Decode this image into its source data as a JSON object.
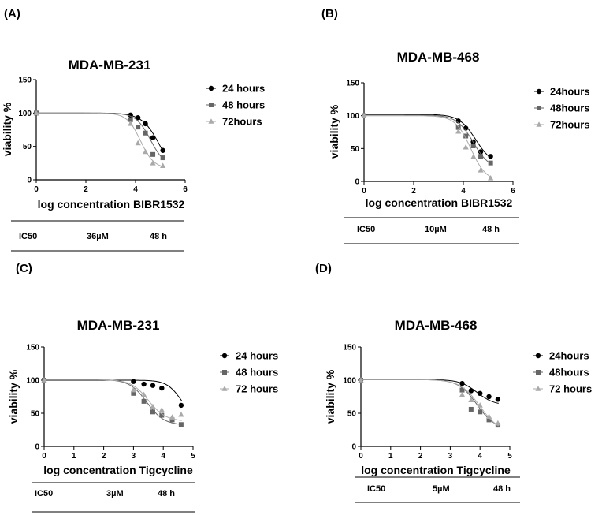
{
  "figure": {
    "panels": [
      {
        "letter": "(A)",
        "ic50_label": "IC50",
        "ic50_value": "36µM",
        "ic50_time": "48 h"
      },
      {
        "letter": "(B)",
        "ic50_label": "IC50",
        "ic50_value": "10µM",
        "ic50_time": "48 h"
      },
      {
        "letter": "(C)",
        "ic50_label": "IC50",
        "ic50_value": "3µM",
        "ic50_time": "48 h"
      },
      {
        "letter": "(D)",
        "ic50_label": "IC50",
        "ic50_value": "5µM",
        "ic50_time": "48 h"
      }
    ]
  },
  "chart_data": [
    {
      "type": "scatter",
      "title": "MDA-MB-231",
      "xlabel": "log concentration BIBR1532",
      "ylabel": "viability %",
      "xlim": [
        0,
        6
      ],
      "ylim": [
        0,
        150
      ],
      "xticks": [
        0,
        2,
        4,
        6
      ],
      "yticks": [
        0,
        50,
        100,
        150
      ],
      "legend_position": "right",
      "series": [
        {
          "name": "24 hours",
          "marker": "circle",
          "color": "#000000",
          "x": [
            0,
            3.8,
            4.1,
            4.4,
            4.7,
            5.1
          ],
          "y": [
            100,
            97,
            93,
            84,
            63,
            44
          ],
          "fit": {
            "top": 100,
            "bottom": 0,
            "logic50": 5.0,
            "hill": 1.2
          }
        },
        {
          "name": "48 hours",
          "marker": "square",
          "color": "#666666",
          "x": [
            0,
            3.8,
            4.1,
            4.4,
            4.7,
            5.1
          ],
          "y": [
            100,
            90,
            79,
            70,
            38,
            33
          ],
          "fit": {
            "top": 100,
            "bottom": 20,
            "logic50": 4.6,
            "hill": 1.5
          }
        },
        {
          "name": "72hours",
          "marker": "triangle",
          "color": "#aaaaaa",
          "x": [
            0,
            3.8,
            4.1,
            4.4,
            4.7,
            5.1
          ],
          "y": [
            100,
            84,
            55,
            42,
            25,
            21
          ],
          "fit": {
            "top": 100,
            "bottom": 17,
            "logic50": 4.2,
            "hill": 1.6
          }
        }
      ]
    },
    {
      "type": "scatter",
      "title": "MDA-MB-468",
      "xlabel": "log concentration BIBR1532",
      "ylabel": "viability %",
      "xlim": [
        0,
        6
      ],
      "ylim": [
        0,
        150
      ],
      "xticks": [
        0,
        2,
        4,
        6
      ],
      "yticks": [
        0,
        50,
        100,
        150
      ],
      "legend_position": "right",
      "series": [
        {
          "name": "24hours",
          "marker": "circle",
          "color": "#000000",
          "x": [
            0,
            3.8,
            4.1,
            4.4,
            4.7,
            5.1
          ],
          "y": [
            100,
            92,
            81,
            60,
            45,
            38
          ],
          "fit": {
            "top": 102,
            "bottom": 25,
            "logic50": 4.5,
            "hill": 1.3
          }
        },
        {
          "name": "48hours",
          "marker": "square",
          "color": "#666666",
          "x": [
            0,
            3.8,
            4.1,
            4.4,
            4.7,
            5.1
          ],
          "y": [
            100,
            82,
            69,
            54,
            38,
            28
          ],
          "fit": {
            "top": 101,
            "bottom": 18,
            "logic50": 4.4,
            "hill": 1.3
          }
        },
        {
          "name": "72hours",
          "marker": "triangle",
          "color": "#aaaaaa",
          "x": [
            0,
            3.8,
            4.1,
            4.4,
            4.7,
            5.1
          ],
          "y": [
            100,
            76,
            52,
            37,
            17,
            5
          ],
          "fit": {
            "top": 100,
            "bottom": 0,
            "logic50": 4.3,
            "hill": 1.4
          }
        }
      ]
    },
    {
      "type": "scatter",
      "title": "MDA-MB-231",
      "xlabel": "log concentration Tigcycline",
      "ylabel": "viability %",
      "xlim": [
        0,
        5
      ],
      "ylim": [
        0,
        150
      ],
      "xticks": [
        0,
        1,
        2,
        3,
        4,
        5
      ],
      "yticks": [
        0,
        50,
        100,
        150
      ],
      "legend_position": "right",
      "series": [
        {
          "name": "24 hours",
          "marker": "circle",
          "color": "#000000",
          "x": [
            0,
            3.0,
            3.35,
            3.65,
            3.95,
            4.6
          ],
          "y": [
            100,
            98,
            94,
            92,
            88,
            62
          ],
          "fit": {
            "top": 100,
            "bottom": 40,
            "logic50": 4.6,
            "hill": 1.8
          }
        },
        {
          "name": "48 hours",
          "marker": "square",
          "color": "#666666",
          "x": [
            0,
            3.0,
            3.35,
            3.65,
            3.95,
            4.3,
            4.6
          ],
          "y": [
            100,
            80,
            68,
            52,
            47,
            40,
            33
          ],
          "fit": {
            "top": 101,
            "bottom": 32,
            "logic50": 3.45,
            "hill": 1.5
          }
        },
        {
          "name": "72 hours",
          "marker": "triangle",
          "color": "#aaaaaa",
          "x": [
            0,
            3.0,
            3.35,
            3.65,
            3.95,
            4.3,
            4.6
          ],
          "y": [
            100,
            85,
            78,
            60,
            55,
            44,
            48
          ],
          "fit": {
            "top": 101,
            "bottom": 38,
            "logic50": 3.5,
            "hill": 1.5
          }
        }
      ]
    },
    {
      "type": "scatter",
      "title": "MDA-MB-468",
      "xlabel": "log concentration Tigcycline",
      "ylabel": "viability %",
      "xlim": [
        0,
        5
      ],
      "ylim": [
        0,
        150
      ],
      "xticks": [
        0,
        1,
        2,
        3,
        4,
        5
      ],
      "yticks": [
        0,
        50,
        100,
        150
      ],
      "legend_position": "right",
      "series": [
        {
          "name": "24hours",
          "marker": "circle",
          "color": "#000000",
          "x": [
            0,
            3.4,
            3.7,
            4.0,
            4.3,
            4.6
          ],
          "y": [
            100,
            95,
            84,
            80,
            75,
            71
          ],
          "fit": {
            "top": 101,
            "bottom": 62,
            "logic50": 3.9,
            "hill": 1.5
          }
        },
        {
          "name": "48hours",
          "marker": "square",
          "color": "#666666",
          "x": [
            0,
            3.4,
            3.7,
            4.0,
            4.3,
            4.6
          ],
          "y": [
            100,
            85,
            56,
            52,
            40,
            32
          ],
          "fit": {
            "top": 101,
            "bottom": 25,
            "logic50": 3.9,
            "hill": 1.4
          }
        },
        {
          "name": "72 hours",
          "marker": "triangle",
          "color": "#aaaaaa",
          "x": [
            0,
            3.4,
            3.7,
            4.0,
            4.3,
            4.6
          ],
          "y": [
            100,
            78,
            70,
            62,
            45,
            35
          ],
          "fit": {
            "top": 101,
            "bottom": 20,
            "logic50": 4.0,
            "hill": 1.3
          }
        }
      ]
    }
  ]
}
